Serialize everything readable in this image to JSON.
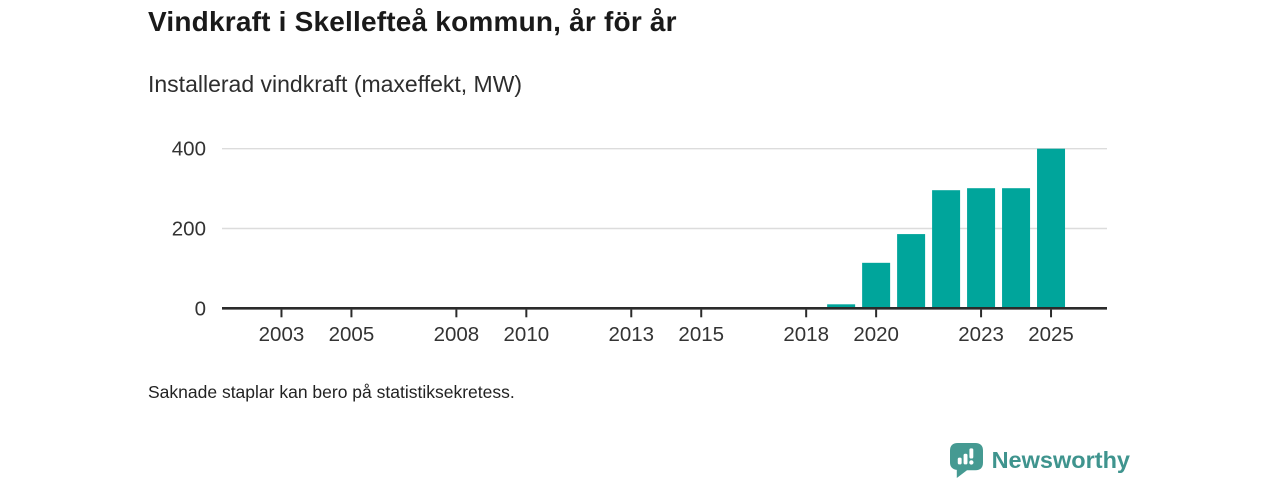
{
  "header": {
    "title": "Vindkraft i Skellefteå kommun, år för år",
    "subtitle": "Installerad vindkraft (maxeffekt, MW)"
  },
  "chart_data": {
    "type": "bar",
    "title": "Vindkraft i Skellefteå kommun, år för år",
    "subtitle": "Installerad vindkraft (maxeffekt, MW)",
    "ylabel": "Installerad vindkraft (maxeffekt, MW)",
    "xlabel": "",
    "unit": "MW",
    "x": [
      2019,
      2020,
      2021,
      2022,
      2023,
      2024,
      2025
    ],
    "values": [
      10,
      114,
      186,
      296,
      301,
      301,
      400
    ],
    "xlim": [
      2001.3,
      2026.6
    ],
    "ylim": [
      0,
      400
    ],
    "yticks": [
      0,
      200,
      400
    ],
    "xticks": [
      2003,
      2005,
      2008,
      2010,
      2013,
      2015,
      2018,
      2020,
      2023,
      2025
    ],
    "grid": true,
    "legend": "none",
    "bar_color": "#00a59b",
    "axis_color": "#2b2b2b",
    "grid_color": "#dcdcdc",
    "tick_label_color": "#333333"
  },
  "footnote": {
    "text": "Saknade staplar kan bero på statistiksekretess."
  },
  "brand": {
    "name": "Newsworthy",
    "icon": "newsworthy-speech-bubble-bar-chart-icon",
    "icon_color": "#459a92",
    "text_color": "#3f948e"
  }
}
